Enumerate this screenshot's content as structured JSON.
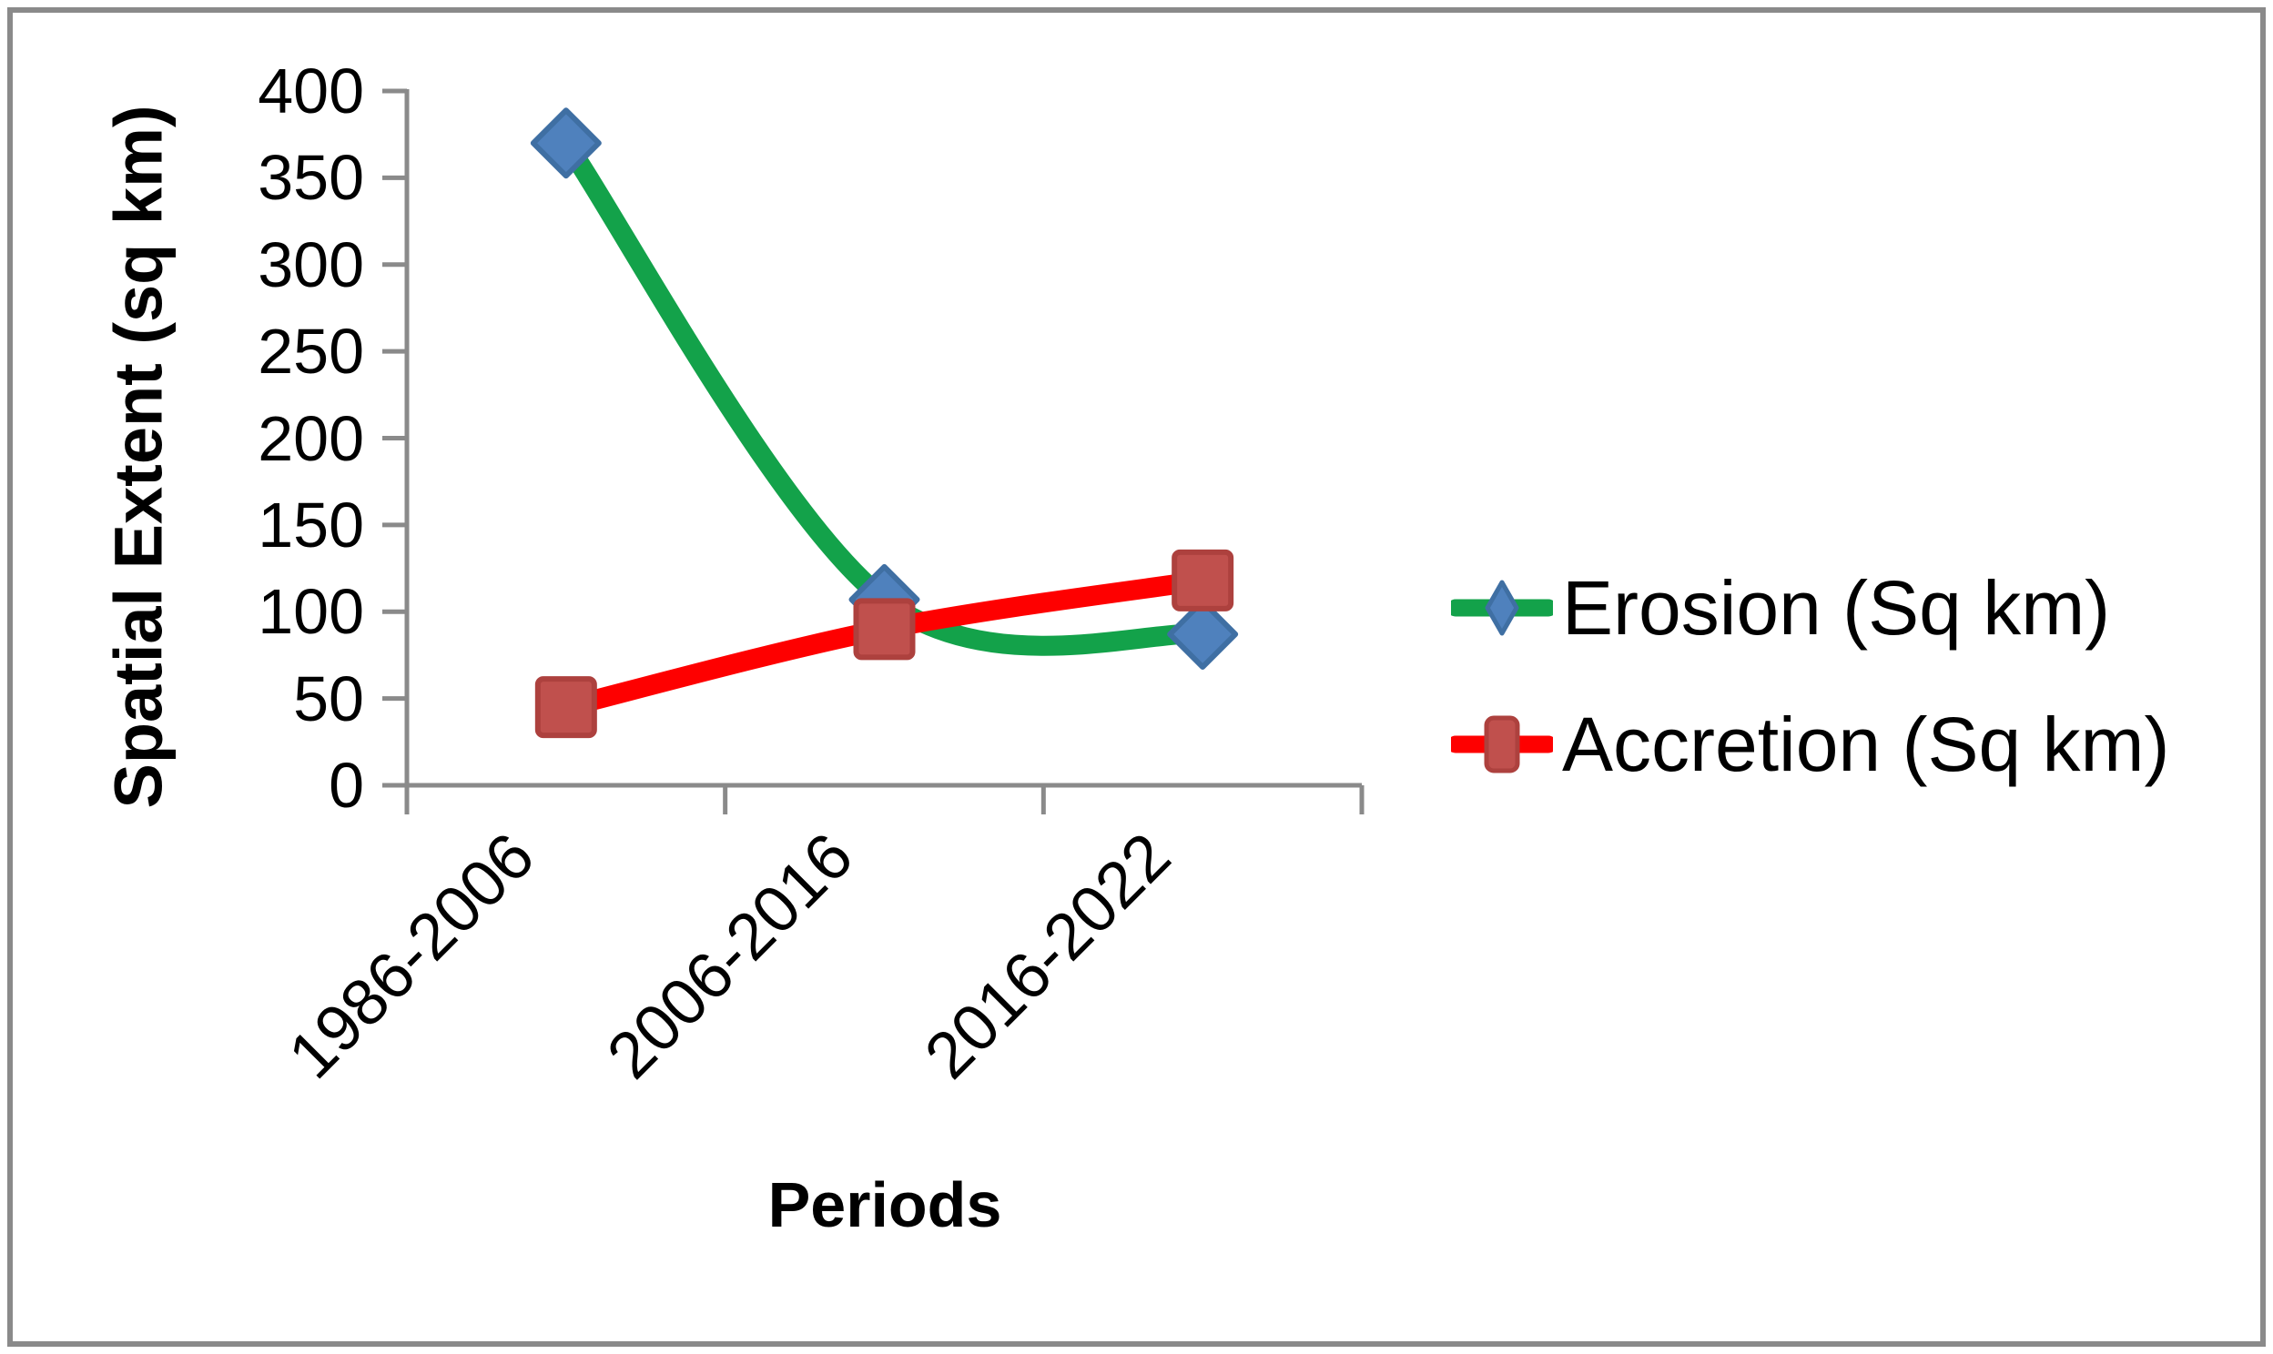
{
  "chart_data": {
    "type": "line",
    "title": "",
    "categories": [
      "1986-2006",
      "2006-2016",
      "2016-2022"
    ],
    "series": [
      {
        "name": "Erosion (Sq km)",
        "values": [
          370,
          107,
          87
        ],
        "line_color": "#13A24A",
        "marker": "diamond",
        "marker_color": "#4F81BD",
        "marker_border": "#3F6FA3"
      },
      {
        "name": "Accretion (Sq km)",
        "values": [
          45,
          90,
          118
        ],
        "line_color": "#FE0000",
        "marker": "square",
        "marker_color": "#C0504D",
        "marker_border": "#AD413E"
      }
    ],
    "xlabel": "Periods",
    "ylabel": "Spatial Extent (sq km)",
    "ylim": [
      0,
      400
    ],
    "ytick_step": 50,
    "yticks": [
      "400",
      "350",
      "300",
      "250",
      "200",
      "150",
      "100",
      "50",
      "0"
    ],
    "grid": false,
    "smooth": true,
    "legend_position": "right",
    "axis_color": "#8A8A8A"
  }
}
